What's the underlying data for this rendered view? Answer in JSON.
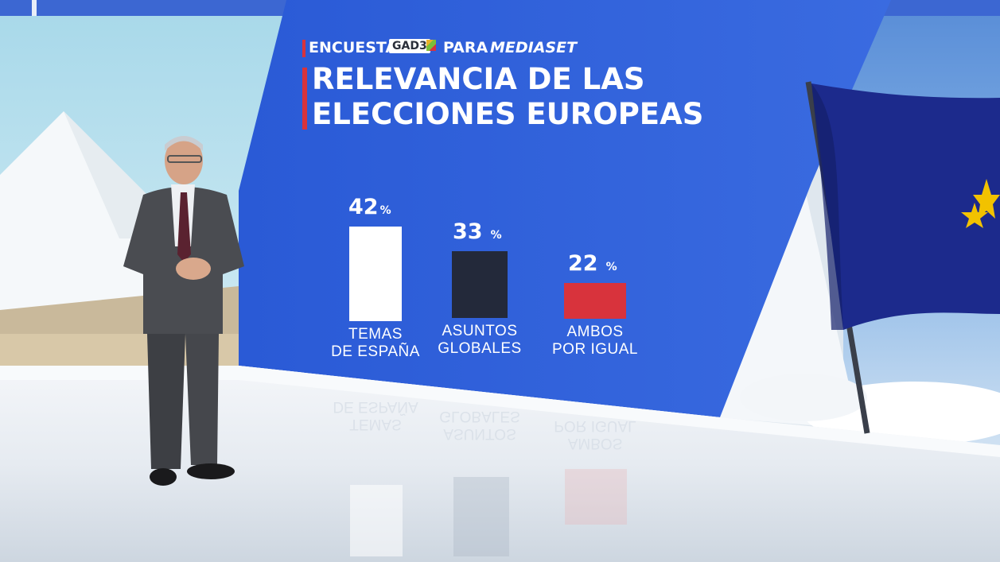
{
  "header": {
    "encuesta": "ENCUESTA",
    "pollster_logo": "GAD3",
    "para": "PARA",
    "client": "MEDIASET",
    "title_line1": "RELEVANCIA DE LAS",
    "title_line2": "ELECCIONES EUROPEAS"
  },
  "colors": {
    "screen_blue": "#2f61d9",
    "accent_red": "#d8333c",
    "bar_white": "#ffffff",
    "bar_dark": "#23293a",
    "bar_red": "#d8333c",
    "flag_blue": "#1c2a8c",
    "star_yellow": "#f2c200"
  },
  "chart_data": {
    "type": "bar",
    "categories": [
      "TEMAS DE ESPAÑA",
      "ASUNTOS GLOBALES",
      "AMBOS POR IGUAL"
    ],
    "category_lines": [
      [
        "TEMAS",
        "DE ESPAÑA"
      ],
      [
        "ASUNTOS",
        "GLOBALES"
      ],
      [
        "AMBOS",
        "POR IGUAL"
      ]
    ],
    "values": [
      42,
      33,
      22
    ],
    "value_labels": [
      "42",
      "33",
      "22"
    ],
    "unit": "%",
    "bar_colors": [
      "#ffffff",
      "#23293a",
      "#d8333c"
    ],
    "title": "RELEVANCIA DE LAS ELECCIONES EUROPEAS"
  }
}
